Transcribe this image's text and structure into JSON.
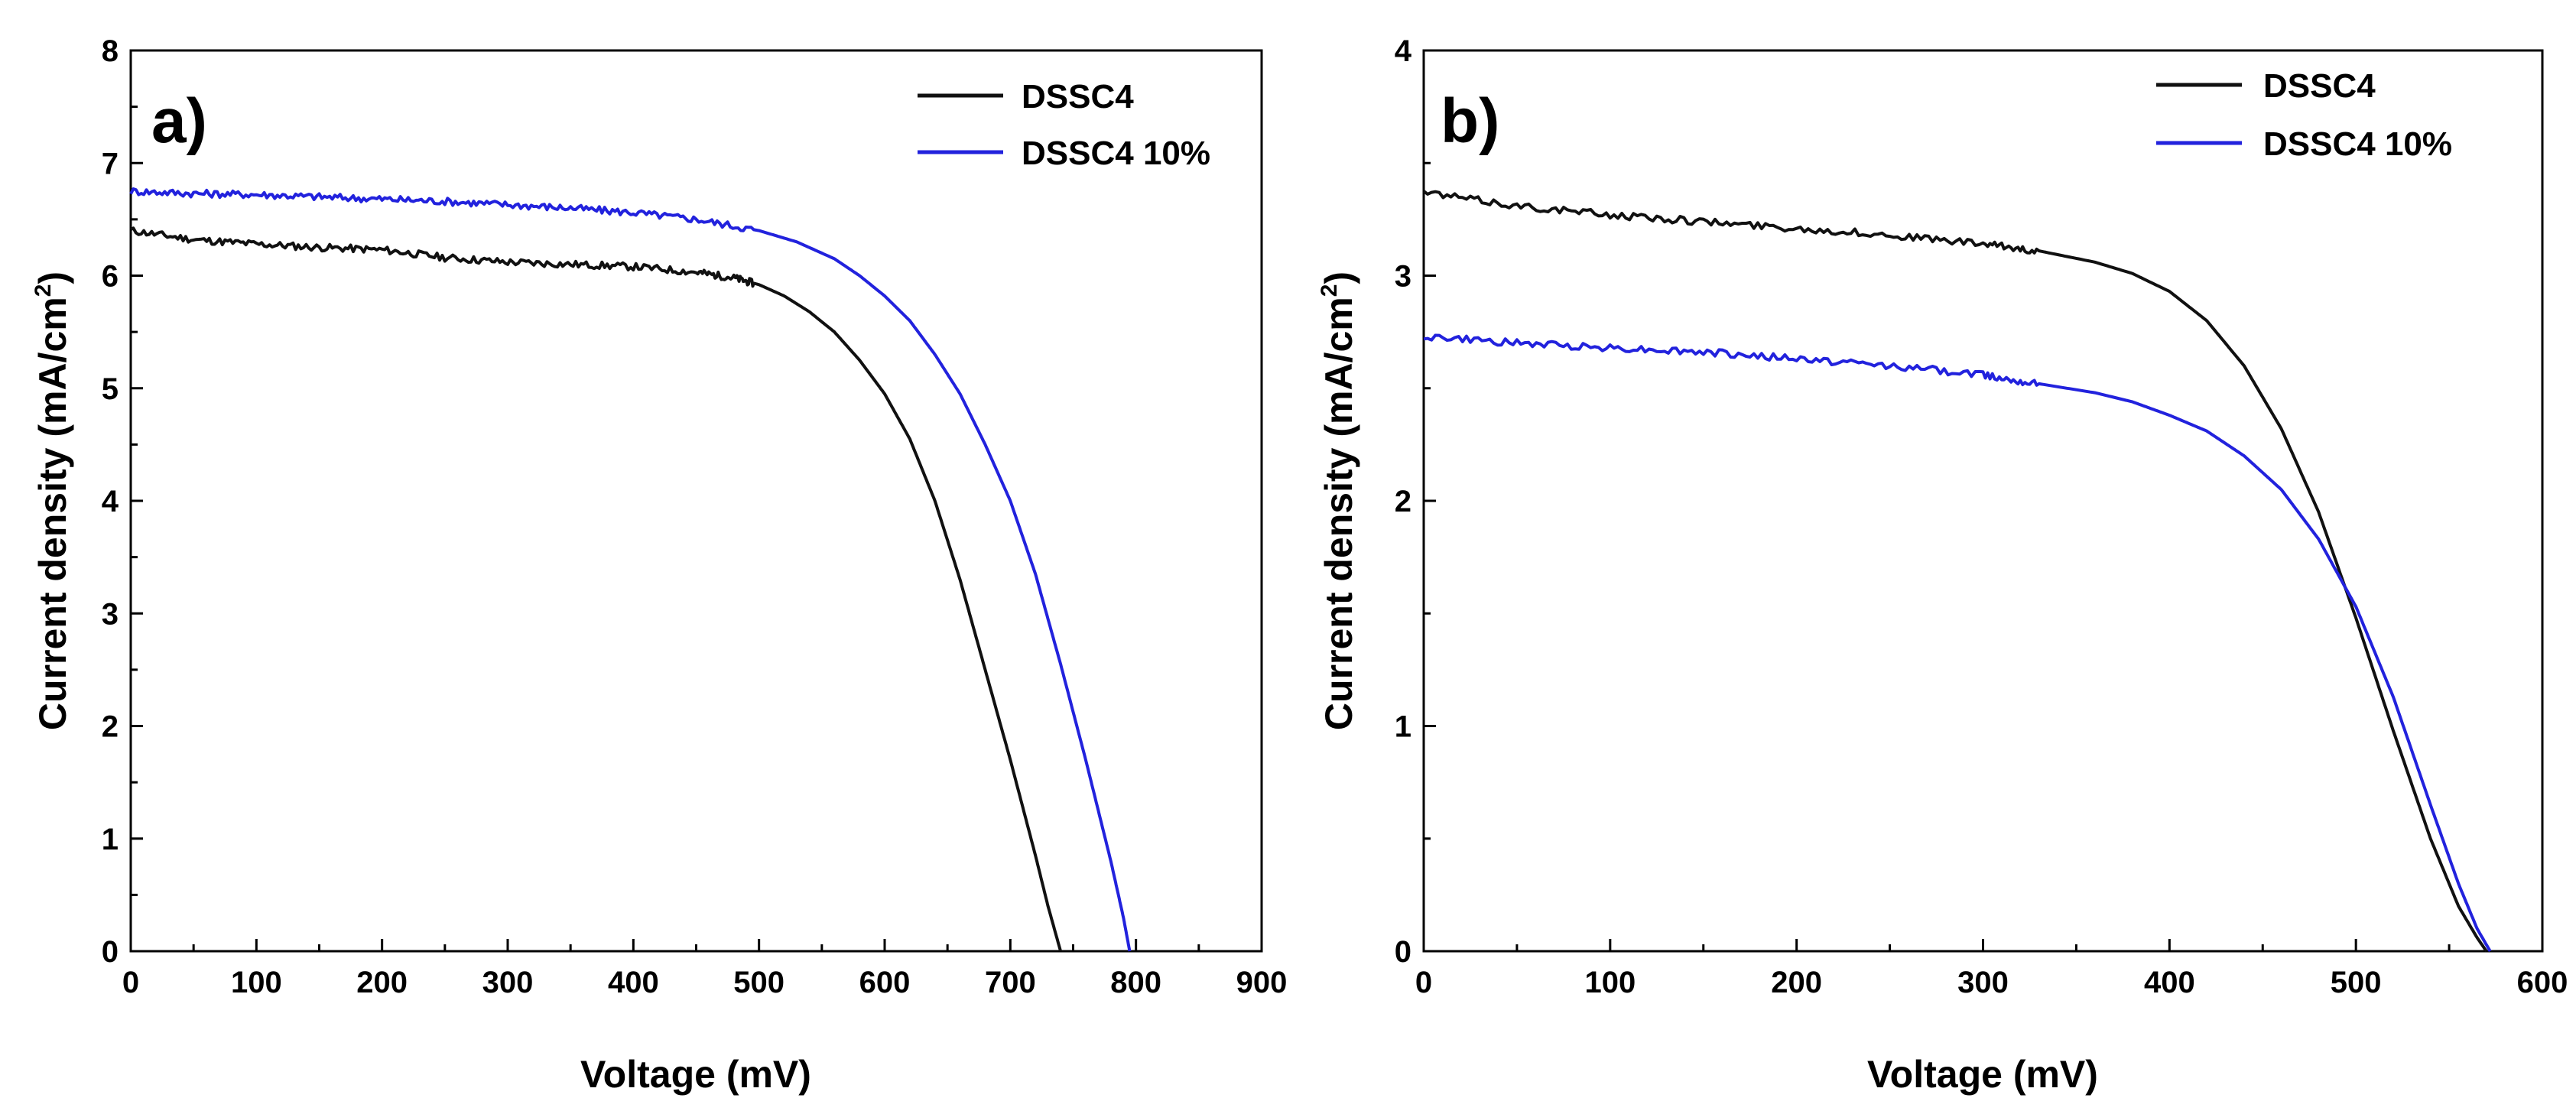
{
  "chart_data": [
    {
      "type": "line",
      "panel_label": "a)",
      "xlabel": "Voltage (mV)",
      "ylabel": "Current density (mA/cm",
      "ylabel_sup": "2",
      "ylabel_close": ")",
      "xlim": [
        0,
        900
      ],
      "ylim": [
        0,
        8
      ],
      "xticks": [
        "0",
        "100",
        "200",
        "300",
        "400",
        "500",
        "600",
        "700",
        "800",
        "900"
      ],
      "yticks": [
        "0",
        "1",
        "2",
        "3",
        "4",
        "5",
        "6",
        "7",
        "8"
      ],
      "legend_position": "top-right",
      "grid": false,
      "series": [
        {
          "name": "DSSC4",
          "color": "#111111",
          "x": [
            0,
            50,
            100,
            150,
            200,
            250,
            300,
            350,
            400,
            450,
            480,
            500,
            520,
            540,
            560,
            580,
            600,
            620,
            640,
            660,
            680,
            700,
            720,
            730,
            740
          ],
          "y": [
            6.4,
            6.32,
            6.28,
            6.25,
            6.23,
            6.16,
            6.12,
            6.1,
            6.08,
            6.03,
            5.98,
            5.92,
            5.82,
            5.68,
            5.5,
            5.25,
            4.95,
            4.55,
            4.0,
            3.3,
            2.5,
            1.7,
            0.85,
            0.4,
            0.0
          ]
        },
        {
          "name": "DSSC4 10%",
          "color": "#2222dd",
          "x": [
            0,
            50,
            100,
            150,
            200,
            250,
            300,
            350,
            400,
            450,
            500,
            530,
            560,
            580,
            600,
            620,
            640,
            660,
            680,
            700,
            720,
            740,
            760,
            780,
            790,
            795
          ],
          "y": [
            6.75,
            6.73,
            6.72,
            6.7,
            6.68,
            6.66,
            6.63,
            6.6,
            6.56,
            6.5,
            6.4,
            6.3,
            6.15,
            6.0,
            5.82,
            5.6,
            5.3,
            4.95,
            4.5,
            4.0,
            3.35,
            2.55,
            1.7,
            0.8,
            0.3,
            0.0
          ]
        }
      ]
    },
    {
      "type": "line",
      "panel_label": "b)",
      "xlabel": "Voltage (mV)",
      "ylabel": "Current density (mA/cm",
      "ylabel_sup": "2",
      "ylabel_close": ")",
      "xlim": [
        0,
        600
      ],
      "ylim": [
        0,
        4
      ],
      "xticks": [
        "0",
        "100",
        "200",
        "300",
        "400",
        "500",
        "600"
      ],
      "yticks": [
        "0",
        "1",
        "2",
        "3",
        "4"
      ],
      "legend_position": "top-right",
      "grid": false,
      "series": [
        {
          "name": "DSSC4",
          "color": "#111111",
          "x": [
            0,
            50,
            100,
            150,
            200,
            250,
            300,
            330,
            360,
            380,
            400,
            420,
            440,
            460,
            480,
            500,
            520,
            540,
            555,
            565,
            570
          ],
          "y": [
            3.37,
            3.31,
            3.27,
            3.24,
            3.21,
            3.18,
            3.14,
            3.11,
            3.06,
            3.01,
            2.93,
            2.8,
            2.6,
            2.32,
            1.95,
            1.48,
            0.98,
            0.5,
            0.2,
            0.06,
            0.0
          ]
        },
        {
          "name": "DSSC4 10%",
          "color": "#2222dd",
          "x": [
            0,
            50,
            100,
            150,
            200,
            250,
            300,
            330,
            360,
            380,
            400,
            420,
            440,
            460,
            480,
            500,
            520,
            540,
            555,
            565,
            572
          ],
          "y": [
            2.73,
            2.7,
            2.68,
            2.66,
            2.63,
            2.6,
            2.56,
            2.52,
            2.48,
            2.44,
            2.38,
            2.31,
            2.2,
            2.05,
            1.83,
            1.53,
            1.13,
            0.65,
            0.3,
            0.1,
            0.0
          ]
        }
      ]
    }
  ]
}
